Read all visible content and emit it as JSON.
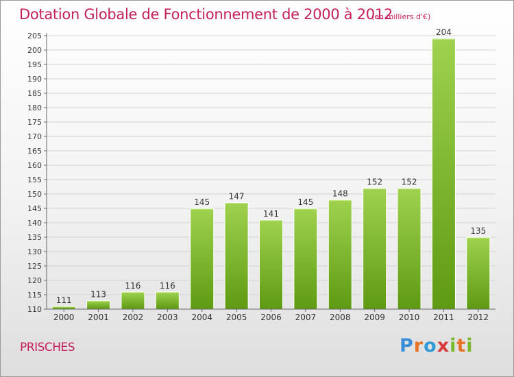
{
  "title": "Dotation Globale de Fonctionnement de 2000 à 2012",
  "unit": "(en milliers d'€)",
  "commune": "PRISCHES",
  "logo": {
    "letters": [
      "P",
      "r",
      "o",
      "x",
      "i",
      "t",
      "i"
    ],
    "colors": [
      "#3a8fd6",
      "#e8742a",
      "#2f9ad6",
      "#d63a3a",
      "#79b82a",
      "#e8742a",
      "#79b82a"
    ]
  },
  "colors": {
    "accent": "#c41e5b",
    "bar": "#7fbf2f",
    "bar_light": "#a6d85a",
    "bar_dark": "#5e9a12"
  },
  "chart_data": {
    "type": "bar",
    "categories": [
      "2000",
      "2001",
      "2002",
      "2003",
      "2004",
      "2005",
      "2006",
      "2007",
      "2008",
      "2009",
      "2010",
      "2011",
      "2012"
    ],
    "values": [
      111,
      113,
      116,
      116,
      145,
      147,
      141,
      145,
      148,
      152,
      152,
      204,
      135
    ],
    "ylim": [
      110,
      205
    ],
    "yticks": [
      110,
      115,
      120,
      125,
      130,
      135,
      140,
      145,
      150,
      155,
      160,
      165,
      170,
      175,
      180,
      185,
      190,
      195,
      200,
      205
    ],
    "grid": true
  }
}
